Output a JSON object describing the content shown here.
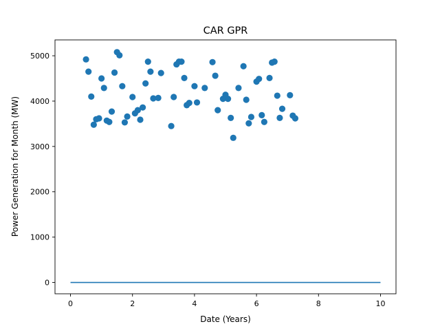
{
  "chart_data": {
    "type": "scatter",
    "title": "CAR GPR",
    "xlabel": "Date (Years)",
    "ylabel": "Power Generation for Month (MW)",
    "xlim": [
      -0.5,
      10.5
    ],
    "ylim": [
      -250,
      5350
    ],
    "grid": false,
    "x_ticks": [
      0,
      2,
      4,
      6,
      8,
      10
    ],
    "x_tick_labels": [
      "0",
      "2",
      "4",
      "6",
      "8",
      "10"
    ],
    "y_ticks": [
      0,
      1000,
      2000,
      3000,
      4000,
      5000
    ],
    "y_tick_labels": [
      "0",
      "1000",
      "2000",
      "3000",
      "4000",
      "5000"
    ],
    "series": [
      {
        "kind": "scatter",
        "color": "#1f77b4",
        "points": [
          [
            0.5,
            4920
          ],
          [
            0.58,
            4650
          ],
          [
            0.67,
            4100
          ],
          [
            0.75,
            3480
          ],
          [
            0.83,
            3600
          ],
          [
            0.92,
            3620
          ],
          [
            1.0,
            4500
          ],
          [
            1.08,
            4290
          ],
          [
            1.17,
            3570
          ],
          [
            1.25,
            3540
          ],
          [
            1.33,
            3770
          ],
          [
            1.42,
            4630
          ],
          [
            1.5,
            5080
          ],
          [
            1.58,
            5010
          ],
          [
            1.67,
            4330
          ],
          [
            1.75,
            3530
          ],
          [
            1.83,
            3660
          ],
          [
            2.0,
            4090
          ],
          [
            2.08,
            3730
          ],
          [
            2.17,
            3800
          ],
          [
            2.25,
            3590
          ],
          [
            2.33,
            3860
          ],
          [
            2.42,
            4390
          ],
          [
            2.5,
            4870
          ],
          [
            2.58,
            4650
          ],
          [
            2.67,
            4060
          ],
          [
            2.83,
            4070
          ],
          [
            2.92,
            4620
          ],
          [
            3.25,
            3450
          ],
          [
            3.33,
            4090
          ],
          [
            3.42,
            4810
          ],
          [
            3.5,
            4870
          ],
          [
            3.58,
            4870
          ],
          [
            3.67,
            4510
          ],
          [
            3.75,
            3910
          ],
          [
            3.83,
            3960
          ],
          [
            4.0,
            4330
          ],
          [
            4.08,
            3970
          ],
          [
            4.33,
            4290
          ],
          [
            4.58,
            4860
          ],
          [
            4.67,
            4560
          ],
          [
            4.75,
            3800
          ],
          [
            4.92,
            4050
          ],
          [
            5.0,
            4140
          ],
          [
            5.08,
            4050
          ],
          [
            5.17,
            3630
          ],
          [
            5.25,
            3190
          ],
          [
            5.42,
            4290
          ],
          [
            5.58,
            4770
          ],
          [
            5.67,
            4030
          ],
          [
            5.75,
            3510
          ],
          [
            5.83,
            3650
          ],
          [
            6.0,
            4430
          ],
          [
            6.08,
            4490
          ],
          [
            6.17,
            3690
          ],
          [
            6.25,
            3540
          ],
          [
            6.42,
            4510
          ],
          [
            6.5,
            4850
          ],
          [
            6.58,
            4870
          ],
          [
            6.67,
            4120
          ],
          [
            6.75,
            3630
          ],
          [
            6.83,
            3830
          ],
          [
            7.08,
            4130
          ],
          [
            7.17,
            3680
          ],
          [
            7.25,
            3620
          ]
        ]
      },
      {
        "kind": "line",
        "color": "#1f77b4",
        "points": [
          [
            0,
            0
          ],
          [
            10,
            0
          ]
        ]
      }
    ]
  }
}
